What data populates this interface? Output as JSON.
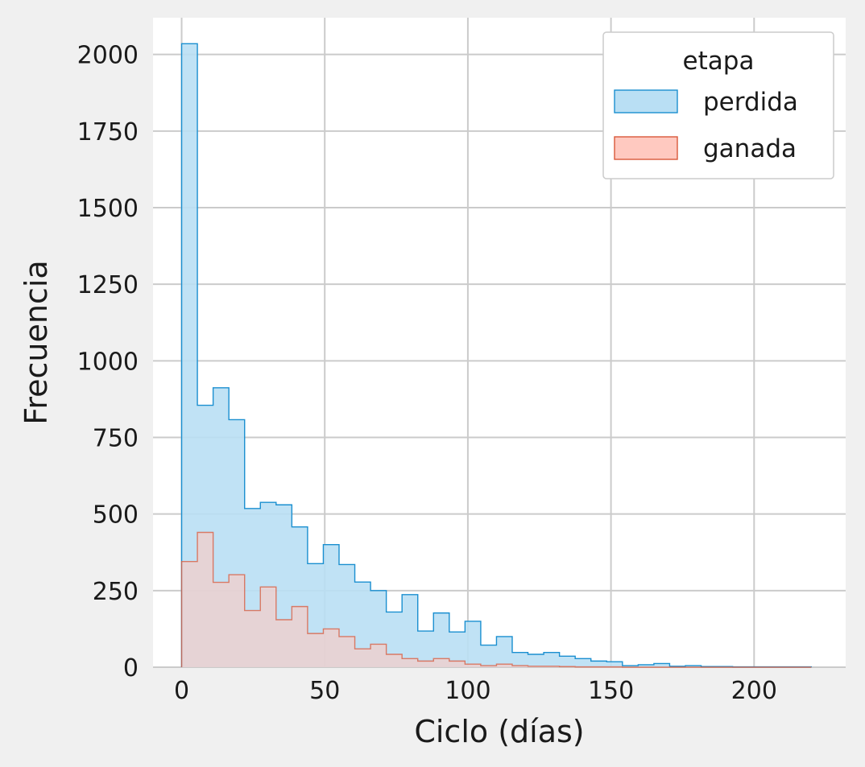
{
  "chart_data": {
    "type": "histogram",
    "xlabel": "Ciclo (días)",
    "ylabel": "Frecuencia",
    "xlim": [
      -10,
      232
    ],
    "ylim": [
      0,
      2120
    ],
    "bin_edges": [
      0,
      5.5,
      11,
      16.5,
      22,
      27.5,
      33,
      38.5,
      44,
      49.5,
      55,
      60.5,
      66,
      71.5,
      77,
      82.5,
      88,
      93.5,
      99,
      104.5,
      110,
      115.5,
      121,
      126.5,
      132,
      137.5,
      143,
      148.5,
      154,
      159.5,
      165,
      170.5,
      176,
      181.5,
      187,
      192.5,
      198,
      203.5,
      209,
      214.5,
      220
    ],
    "x_ticks": [
      0,
      50,
      100,
      150,
      200
    ],
    "y_ticks": [
      0,
      250,
      500,
      750,
      1000,
      1250,
      1500,
      1750,
      2000
    ],
    "grid": true,
    "legend": {
      "title": "etapa",
      "position": "top-right"
    },
    "series": [
      {
        "name": "perdida",
        "color": "#1a8fd0",
        "fill": "#b9dff4",
        "values": [
          2035,
          855,
          912,
          808,
          518,
          538,
          530,
          458,
          338,
          400,
          335,
          278,
          250,
          180,
          237,
          118,
          177,
          115,
          150,
          72,
          100,
          48,
          42,
          48,
          36,
          28,
          20,
          18,
          5,
          8,
          12,
          3,
          5,
          2,
          2,
          1,
          1,
          1,
          1,
          1
        ]
      },
      {
        "name": "ganada",
        "color": "#d9583a",
        "fill": "#ffc9c0",
        "values": [
          345,
          440,
          277,
          302,
          185,
          262,
          155,
          198,
          110,
          125,
          100,
          60,
          75,
          42,
          28,
          20,
          28,
          20,
          10,
          5,
          10,
          5,
          3,
          3,
          2,
          1,
          1,
          1,
          0,
          0,
          0,
          0,
          0,
          0,
          0,
          0,
          0,
          0,
          0,
          0
        ]
      }
    ]
  }
}
